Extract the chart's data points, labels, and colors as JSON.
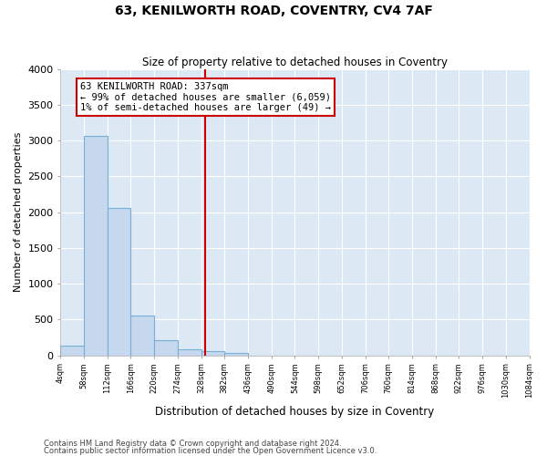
{
  "title": "63, KENILWORTH ROAD, COVENTRY, CV4 7AF",
  "subtitle": "Size of property relative to detached houses in Coventry",
  "xlabel": "Distribution of detached houses by size in Coventry",
  "ylabel": "Number of detached properties",
  "footnote1": "Contains HM Land Registry data © Crown copyright and database right 2024.",
  "footnote2": "Contains public sector information licensed under the Open Government Licence v3.0.",
  "annotation_line1": "63 KENILWORTH ROAD: 337sqm",
  "annotation_line2": "← 99% of detached houses are smaller (6,059)",
  "annotation_line3": "1% of semi-detached houses are larger (49) →",
  "property_size": 337,
  "bar_color": "#c5d8ed",
  "bar_edge_color": "#7aafd4",
  "vline_color": "#cc0000",
  "annotation_box_color": "#cc0000",
  "fig_background_color": "#ffffff",
  "ax_background_color": "#dce9f5",
  "grid_color": "#ffffff",
  "bin_edges": [
    4,
    58,
    112,
    166,
    220,
    274,
    328,
    382,
    436,
    490,
    544,
    598,
    652,
    706,
    760,
    814,
    868,
    922,
    976,
    1030,
    1084
  ],
  "bar_heights": [
    130,
    3060,
    2060,
    560,
    205,
    85,
    55,
    35,
    0,
    0,
    0,
    0,
    0,
    0,
    0,
    0,
    0,
    0,
    0,
    0
  ],
  "ylim": [
    0,
    4000
  ],
  "yticks": [
    0,
    500,
    1000,
    1500,
    2000,
    2500,
    3000,
    3500,
    4000
  ]
}
